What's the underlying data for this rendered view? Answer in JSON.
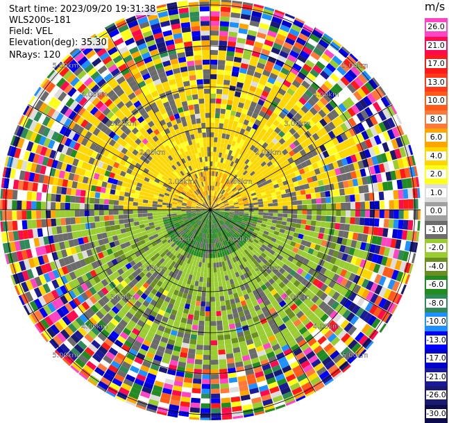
{
  "header": {
    "start_time": "Start time: 2023/09/20 19:31:38",
    "instrument": "WLS200s-181",
    "field": "Field: VEL",
    "elevation": "Elevation(deg): 35.30",
    "nrays": "NRays: 120"
  },
  "colorbar": {
    "unit": "m/s",
    "ticks": [
      "26.0",
      "21.0",
      "17.0",
      "13.0",
      "10.0",
      "8.0",
      "6.0",
      "4.0",
      "2.0",
      "1.0",
      "0.0",
      "-1.0",
      "-2.0",
      "-4.0",
      "-6.0",
      "-8.0",
      "-10.0",
      "-13.0",
      "-17.0",
      "-21.0",
      "-26.0",
      "-30.0"
    ],
    "colors": [
      "#ff44c4",
      "#ff0a4e",
      "#ff1a1a",
      "#ff3a1a",
      "#ff5a1a",
      "#ff7a3a",
      "#ffa500",
      "#ffd700",
      "#ffff1a",
      "#dddddd",
      "#a0a0a0",
      "#6b6b6b",
      "#9acd32",
      "#6b8e23",
      "#228b22",
      "#2e8b57",
      "#1e90ff",
      "#0000ff",
      "#0000cd",
      "#1b1b9a",
      "#191970",
      "#0c0c4d"
    ]
  },
  "chart_data": {
    "type": "heatmap",
    "projection": "polar PPI",
    "field": "VEL",
    "units": "m/s",
    "n_rays": 120,
    "range_rings_km": [
      1.0,
      2.0,
      3.0,
      4.0,
      5.0
    ],
    "range_ring_labels": [
      "1.00km",
      "2.00km",
      "3.00km",
      "4.00km",
      "5.00km"
    ],
    "radial_spokes_deg": [
      0,
      30,
      60,
      90,
      120,
      150,
      180,
      210,
      240,
      270,
      300,
      330
    ],
    "max_range_km": 5.5,
    "value_range": [
      -30,
      26
    ],
    "regions": [
      {
        "sector": "north",
        "description_values_mps": [
          1,
          4
        ]
      },
      {
        "sector": "south",
        "description_values_mps": [
          -6,
          -1
        ]
      },
      {
        "sector": "outer ring",
        "description_values_mps": [
          -30,
          26
        ]
      }
    ]
  }
}
